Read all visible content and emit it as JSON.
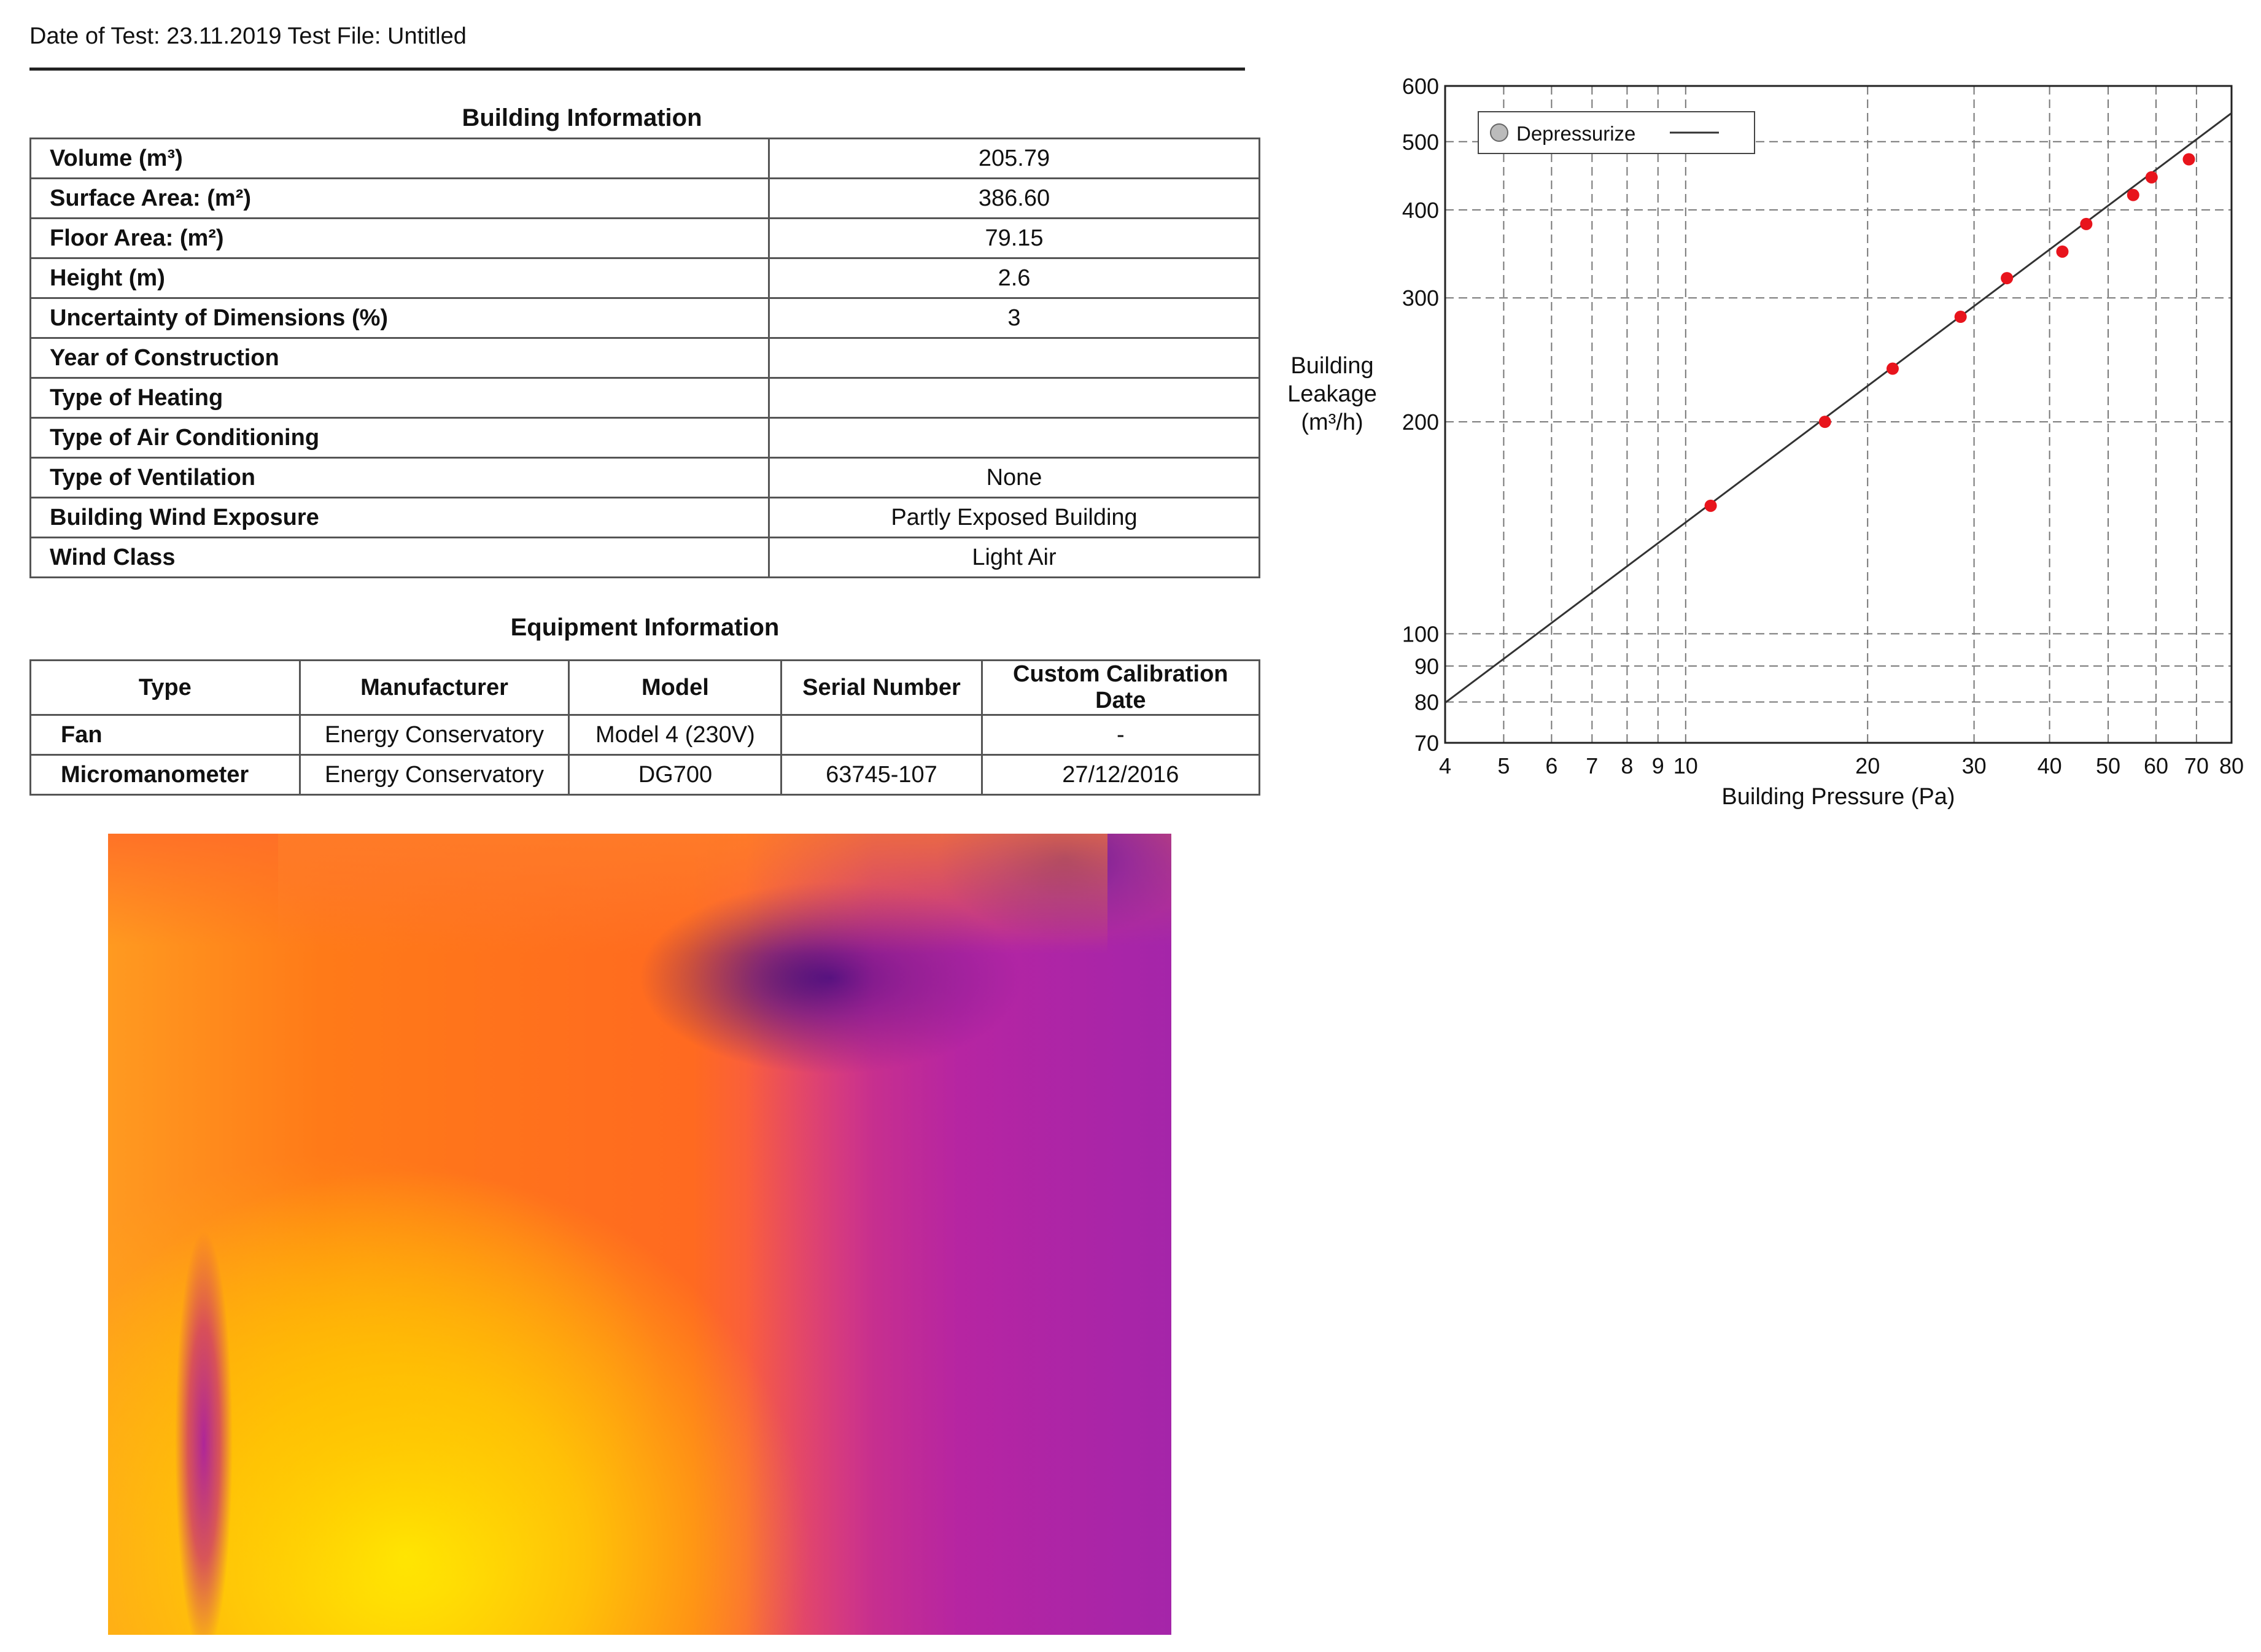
{
  "header": {
    "text": "Date of Test: 23.11.2019  Test File: Untitled"
  },
  "building_info": {
    "title": "Building Information",
    "rows": [
      {
        "label": "Volume (m³)",
        "value": "205.79"
      },
      {
        "label": "Surface Area: (m²)",
        "value": "386.60"
      },
      {
        "label": "Floor Area: (m²)",
        "value": "79.15"
      },
      {
        "label": "Height (m)",
        "value": "2.6"
      },
      {
        "label": "Uncertainty of Dimensions (%)",
        "value": "3"
      },
      {
        "label": "Year of Construction",
        "value": ""
      },
      {
        "label": "Type of Heating",
        "value": ""
      },
      {
        "label": "Type of Air Conditioning",
        "value": ""
      },
      {
        "label": "Type of Ventilation",
        "value": "None"
      },
      {
        "label": "Building Wind Exposure",
        "value": "Partly Exposed Building"
      },
      {
        "label": "Wind Class",
        "value": "Light Air"
      }
    ]
  },
  "equipment_info": {
    "title": "Equipment Information",
    "headers": [
      "Type",
      "Manufacturer",
      "Model",
      "Serial Number",
      "Custom Calibration Date"
    ],
    "rows": [
      [
        "Fan",
        "Energy Conservatory",
        "Model 4 (230V)",
        "",
        "-"
      ],
      [
        "Micromanometer",
        "Energy Conservatory",
        "DG700",
        "63745-107",
        "27/12/2016"
      ]
    ]
  },
  "chart_data": {
    "type": "scatter",
    "xlabel": "Building Pressure (Pa)",
    "ylabel": [
      "Building",
      "Leakage",
      "(m³/h)"
    ],
    "x_scale": "log",
    "y_scale": "log",
    "xlim": [
      4,
      80
    ],
    "ylim": [
      70,
      600
    ],
    "x_ticks": [
      4,
      5,
      6,
      7,
      8,
      9,
      10,
      20,
      30,
      40,
      50,
      60,
      70,
      80
    ],
    "y_ticks": [
      70,
      80,
      90,
      100,
      200,
      300,
      400,
      500,
      600
    ],
    "grid": true,
    "legend": {
      "placement": "top-left",
      "entries": [
        "Depressurize"
      ]
    },
    "series": [
      {
        "name": "Depressurize",
        "color": "#e8141c",
        "x": [
          11,
          17,
          22,
          28.5,
          34,
          42,
          46,
          55,
          59,
          68
        ],
        "y": [
          152,
          200,
          238,
          282,
          320,
          349,
          382,
          420,
          445,
          472
        ]
      }
    ],
    "fit_line": {
      "x": [
        4,
        80
      ],
      "y": [
        79.8,
        549
      ],
      "color": "#333333"
    }
  },
  "thermal_image": {
    "palette": [
      "#2a0a6a",
      "#c01a9a",
      "#f0206a",
      "#ff7a10",
      "#ffd800",
      "#fff200"
    ]
  }
}
